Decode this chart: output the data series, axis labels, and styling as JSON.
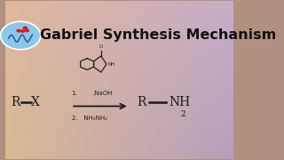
{
  "title": "Gabriel Synthesis Mechanism",
  "title_fontsize": 11.5,
  "title_color": "#111111",
  "title_bold": true,
  "figwidth": 3.2,
  "figheight": 1.8,
  "dpi": 100,
  "grad_topleft": [
    0.88,
    0.72,
    0.62
  ],
  "grad_topright": [
    0.78,
    0.68,
    0.78
  ],
  "grad_botleft": [
    0.85,
    0.73,
    0.58
  ],
  "grad_botright": [
    0.72,
    0.62,
    0.74
  ],
  "logo_color": "#8ec8e8",
  "line_color": "#1a1a1a",
  "arrow_label1": "1.",
  "arrow_naoh": ",NaOH",
  "arrow_label2": "2.  NH₂NH₂"
}
